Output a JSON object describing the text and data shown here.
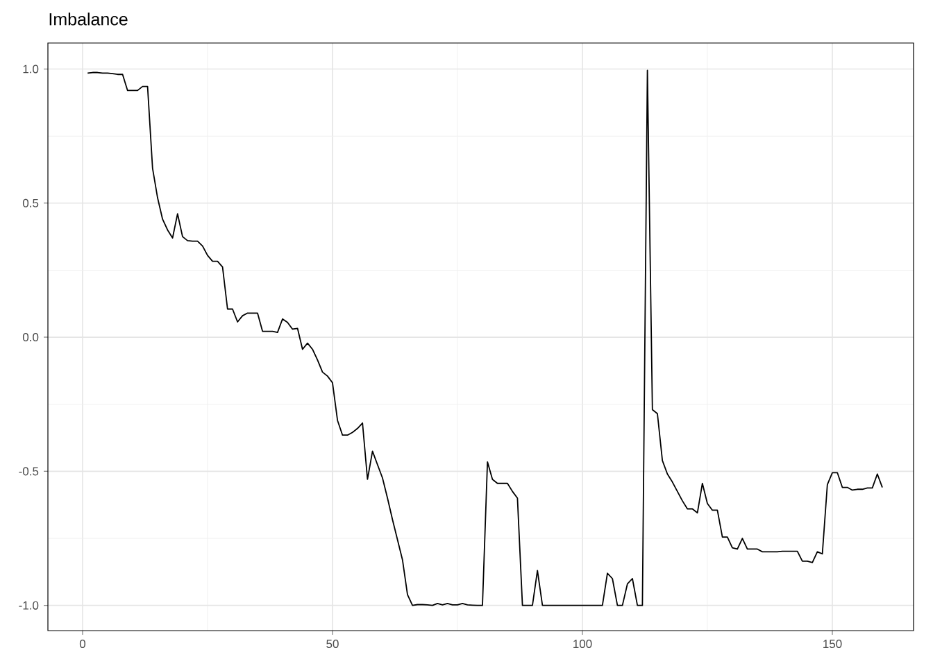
{
  "chart_data": {
    "type": "line",
    "title": "Imbalance",
    "x": [
      1,
      2,
      3,
      4,
      5,
      6,
      7,
      8,
      9,
      10,
      11,
      12,
      13,
      14,
      15,
      16,
      17,
      18,
      19,
      20,
      21,
      22,
      23,
      24,
      25,
      26,
      27,
      28,
      29,
      30,
      31,
      32,
      33,
      34,
      35,
      36,
      37,
      38,
      39,
      40,
      41,
      42,
      43,
      44,
      45,
      46,
      47,
      48,
      49,
      50,
      51,
      52,
      53,
      54,
      55,
      56,
      57,
      58,
      59,
      60,
      61,
      62,
      63,
      64,
      65,
      66,
      67,
      68,
      69,
      70,
      71,
      72,
      73,
      74,
      75,
      76,
      77,
      78,
      79,
      80,
      81,
      82,
      83,
      84,
      85,
      86,
      87,
      88,
      89,
      90,
      91,
      92,
      93,
      94,
      95,
      96,
      97,
      98,
      99,
      100,
      101,
      102,
      103,
      104,
      105,
      106,
      107,
      108,
      109,
      110,
      111,
      112,
      113,
      114,
      115,
      116,
      117,
      118,
      119,
      120,
      121,
      122,
      123,
      124,
      125,
      126,
      127,
      128,
      129,
      130,
      131,
      132,
      133,
      134,
      135,
      136,
      137,
      138,
      139,
      140,
      141,
      142,
      143,
      144,
      145,
      146,
      147,
      148,
      149,
      150,
      151,
      152,
      153,
      154,
      155,
      156,
      157,
      158,
      159,
      160
    ],
    "series": [
      {
        "color": "#000000",
        "values": [
          0.985,
          0.987,
          0.987,
          0.985,
          0.985,
          0.983,
          0.98,
          0.98,
          0.92,
          0.92,
          0.92,
          0.935,
          0.935,
          0.63,
          0.52,
          0.44,
          0.4,
          0.37,
          0.46,
          0.375,
          0.36,
          0.358,
          0.358,
          0.34,
          0.305,
          0.283,
          0.283,
          0.262,
          0.105,
          0.105,
          0.057,
          0.08,
          0.09,
          0.09,
          0.09,
          0.022,
          0.022,
          0.022,
          0.018,
          0.068,
          0.055,
          0.03,
          0.033,
          -0.045,
          -0.022,
          -0.045,
          -0.085,
          -0.13,
          -0.145,
          -0.17,
          -0.31,
          -0.365,
          -0.365,
          -0.355,
          -0.34,
          -0.32,
          -0.53,
          -0.425,
          -0.475,
          -0.525,
          -0.6,
          -0.68,
          -0.755,
          -0.83,
          -0.96,
          -1.0,
          -0.997,
          -0.997,
          -0.998,
          -1.0,
          -0.993,
          -0.998,
          -0.993,
          -0.998,
          -0.998,
          -0.993,
          -0.998,
          -0.999,
          -1.0,
          -1.0,
          -0.465,
          -0.53,
          -0.545,
          -0.545,
          -0.545,
          -0.575,
          -0.6,
          -1.0,
          -1.0,
          -1.0,
          -0.87,
          -1.0,
          -1.0,
          -1.0,
          -1.0,
          -1.0,
          -1.0,
          -1.0,
          -1.0,
          -1.0,
          -1.0,
          -1.0,
          -1.0,
          -1.0,
          -0.88,
          -0.9,
          -1.0,
          -1.0,
          -0.92,
          -0.9,
          -1.0,
          -1.0,
          0.995,
          -0.27,
          -0.285,
          -0.46,
          -0.51,
          -0.54,
          -0.575,
          -0.61,
          -0.64,
          -0.64,
          -0.655,
          -0.545,
          -0.62,
          -0.645,
          -0.645,
          -0.745,
          -0.745,
          -0.785,
          -0.79,
          -0.75,
          -0.79,
          -0.79,
          -0.79,
          -0.8,
          -0.8,
          -0.8,
          -0.8,
          -0.798,
          -0.798,
          -0.798,
          -0.798,
          -0.835,
          -0.835,
          -0.84,
          -0.8,
          -0.808,
          -0.55,
          -0.505,
          -0.505,
          -0.56,
          -0.56,
          -0.57,
          -0.567,
          -0.567,
          -0.562,
          -0.562,
          -0.51,
          -0.56
        ]
      }
    ],
    "xlim": [
      -6.94,
      166.25
    ],
    "ylim": [
      -1.094,
      1.097
    ],
    "xticks": [
      0,
      50,
      100,
      150
    ],
    "yticks": [
      {
        "value": -1,
        "label": "-1.0"
      },
      {
        "value": -0.5,
        "label": "-0.5"
      },
      {
        "value": 0,
        "label": "0.0"
      },
      {
        "value": 0.5,
        "label": "0.5"
      },
      {
        "value": 1,
        "label": "1.0"
      }
    ],
    "grid": true,
    "marker": "none",
    "line_style": "solid"
  }
}
